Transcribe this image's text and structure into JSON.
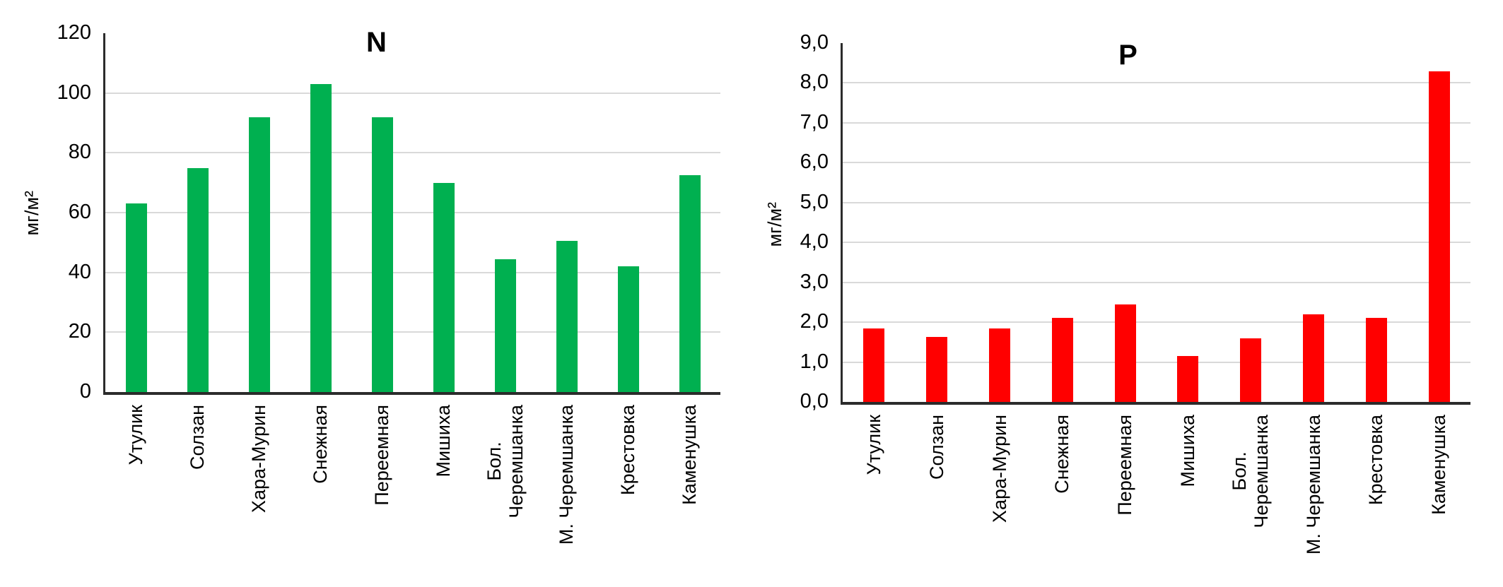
{
  "colors": {
    "grid": "#D9D9D9",
    "axis": "#2B2B2B",
    "text": "#000000",
    "green_bar": "#00B050",
    "red_bar": "#FF0000"
  },
  "chart_data": [
    {
      "type": "bar",
      "title": "N",
      "ylabel": "мг/м²",
      "bar_color": "#00B050",
      "categories": [
        "Утулик",
        "Солзан",
        "Хара-Мурин",
        "Снежная",
        "Переемная",
        "Мишиха",
        "Бол.\nЧеремшанка",
        "М. Черемшанка",
        "Крестовка",
        "Каменушка"
      ],
      "values": [
        63,
        75,
        92,
        103,
        92,
        70,
        44.5,
        50.5,
        42,
        72.5
      ],
      "ylim": [
        0,
        120
      ],
      "ytick_step": 20,
      "ytick_labels": [
        "0",
        "20",
        "40",
        "60",
        "80",
        "100",
        "120"
      ],
      "grid": "horizontal",
      "legend": "none"
    },
    {
      "type": "bar",
      "title": "P",
      "ylabel": "мг/м²",
      "bar_color": "#FF0000",
      "categories": [
        "Утулик",
        "Солзан",
        "Хара-Мурин",
        "Снежная",
        "Переемная",
        "Мишиха",
        "Бол.\nЧеремшанка",
        "М. Черемшанка",
        "Крестовка",
        "Каменушка"
      ],
      "values": [
        1.85,
        1.63,
        1.85,
        2.1,
        2.45,
        1.15,
        1.6,
        2.2,
        2.1,
        8.3
      ],
      "ylim": [
        0,
        9
      ],
      "ytick_step": 1,
      "ytick_labels": [
        "0,0",
        "1,0",
        "2,0",
        "3,0",
        "4,0",
        "5,0",
        "6,0",
        "7,0",
        "8,0",
        "9,0"
      ],
      "grid": "horizontal",
      "legend": "none"
    }
  ]
}
